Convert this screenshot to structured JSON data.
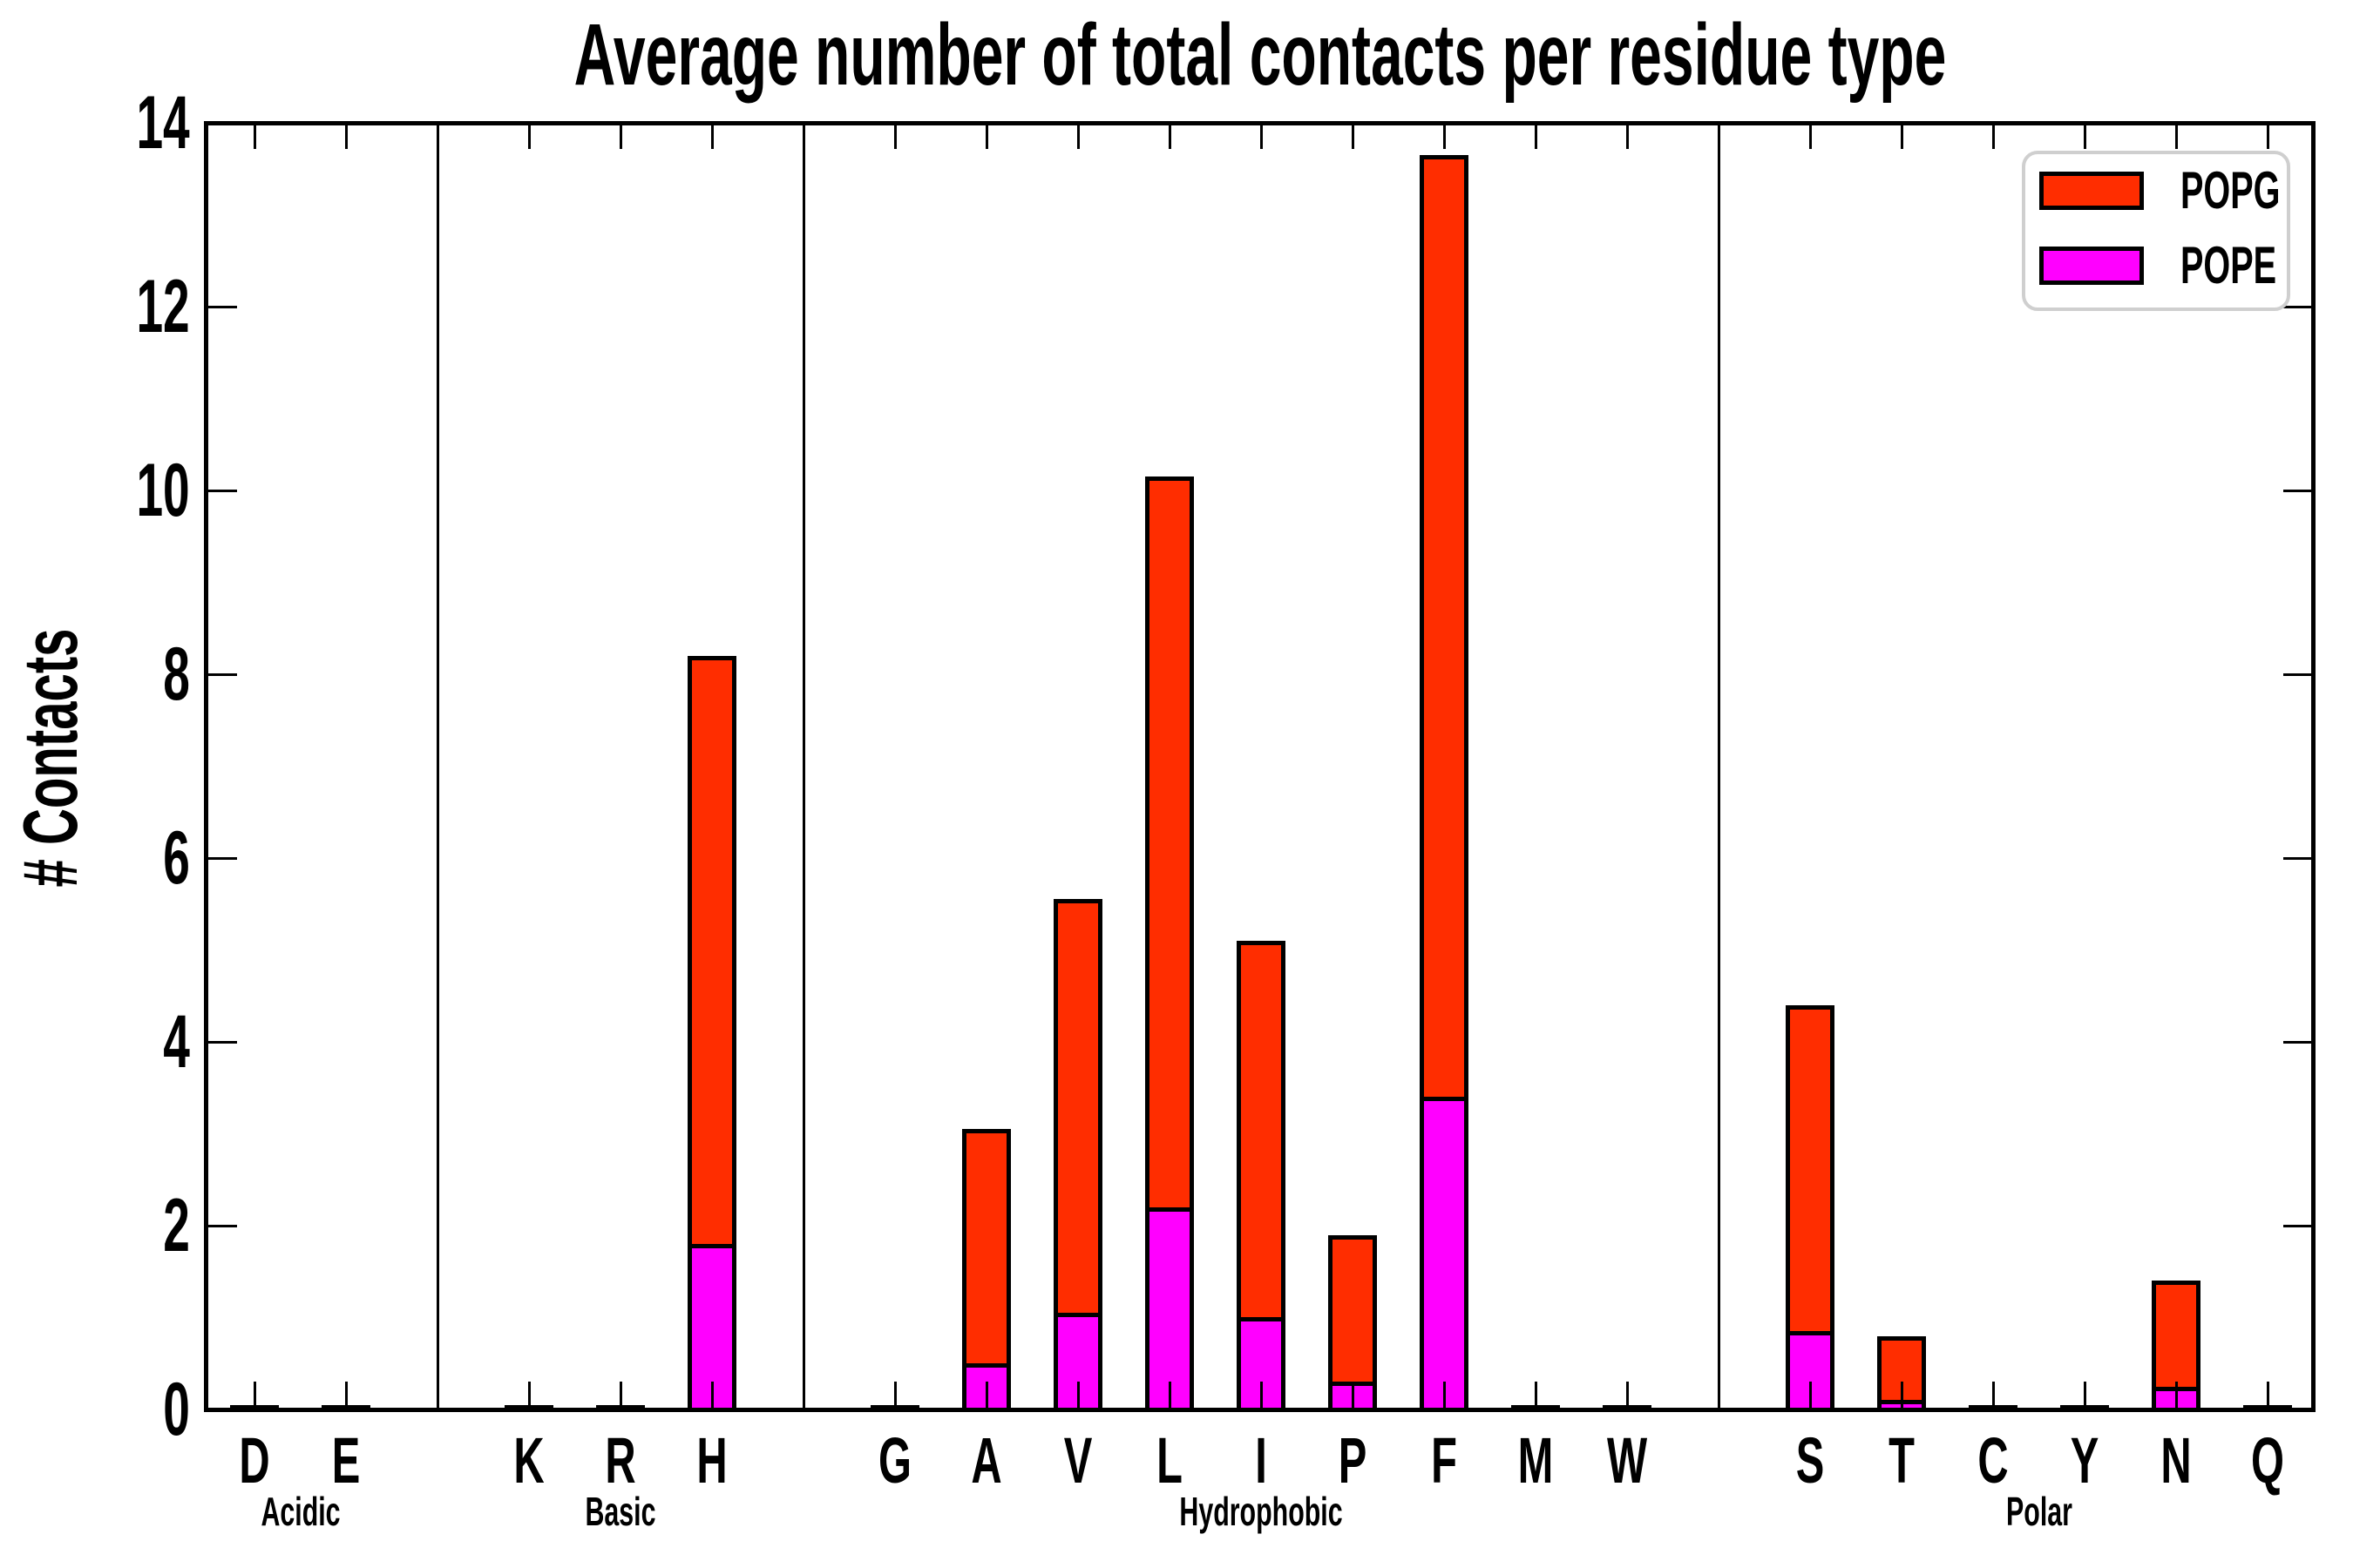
{
  "title": "Average number of total contacts per residue type",
  "y_axis": {
    "label": "# Contacts",
    "tick_labels": [
      "0",
      "2",
      "4",
      "6",
      "8",
      "10",
      "12",
      "14"
    ]
  },
  "legend": {
    "items": [
      {
        "label": "POPG",
        "color": "#ff2d00"
      },
      {
        "label": "POPE",
        "color": "#ff00ff"
      }
    ]
  },
  "chart_data": {
    "type": "bar",
    "stacked": true,
    "title": "Average number of total contacts per residue type",
    "ylabel": "# Contacts",
    "ylim": [
      0,
      14
    ],
    "ytick_step": 2,
    "grid": false,
    "legend_position": "upper right",
    "categories": [
      "D",
      "E",
      "K",
      "R",
      "H",
      "G",
      "A",
      "V",
      "L",
      "I",
      "P",
      "F",
      "M",
      "W",
      "S",
      "T",
      "C",
      "Y",
      "N",
      "Q"
    ],
    "groups": [
      {
        "label": "Acidic",
        "categories": [
          "D",
          "E"
        ]
      },
      {
        "label": "Basic",
        "categories": [
          "K",
          "R",
          "H"
        ]
      },
      {
        "label": "Hydrophobic",
        "categories": [
          "G",
          "A",
          "V",
          "L",
          "I",
          "P",
          "F",
          "M",
          "W"
        ]
      },
      {
        "label": "Polar",
        "categories": [
          "S",
          "T",
          "C",
          "Y",
          "N",
          "Q"
        ]
      }
    ],
    "series": [
      {
        "name": "POPE",
        "color": "#ff00ff",
        "values": [
          0,
          0,
          0,
          0,
          1.8,
          0,
          0.5,
          1.05,
          2.2,
          1.0,
          0.3,
          3.4,
          0,
          0,
          0.85,
          0.1,
          0,
          0,
          0.25,
          0
        ]
      },
      {
        "name": "POPG",
        "color": "#ff2d00",
        "values": [
          0,
          0,
          0,
          0,
          6.4,
          0,
          2.55,
          4.5,
          7.95,
          4.1,
          1.6,
          10.25,
          0,
          0,
          3.55,
          0.7,
          0,
          0,
          1.15,
          0
        ]
      }
    ],
    "totals": [
      0,
      0,
      0,
      0,
      8.2,
      0,
      3.05,
      5.55,
      10.15,
      5.1,
      1.9,
      13.65,
      0,
      0,
      4.4,
      0.8,
      0,
      0,
      1.4,
      0
    ]
  }
}
